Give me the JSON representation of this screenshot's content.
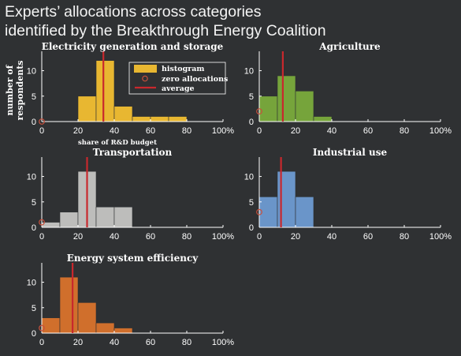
{
  "title_line1": "Experts’ allocations across categories",
  "title_line2": "identified by the Breakthrough Energy Coalition",
  "legend": {
    "histogram": "histogram",
    "zero": "zero allocations",
    "average": "average"
  },
  "colors": {
    "background": "#2f3133",
    "average_line": "#c8282d",
    "zero_marker": "#c8503c",
    "axis": "#ffffff"
  },
  "chart_data": [
    {
      "type": "bar",
      "title": "Electricity generation and storage",
      "xlabel": "share of R&D budget",
      "ylabel": "number of respondents",
      "bin_width": 10,
      "bins": [
        0,
        10,
        20,
        30,
        40,
        50,
        60,
        70
      ],
      "values": [
        0,
        0,
        5,
        12,
        3,
        1,
        1,
        1
      ],
      "zero_allocations": 0,
      "average": 34,
      "color": "#e8b731",
      "xlim": [
        0,
        100
      ],
      "ylim": [
        0,
        13.5
      ],
      "xticks": [
        0,
        20,
        40,
        60,
        80,
        100
      ],
      "xtick_labels": [
        "0",
        "20",
        "40",
        "60",
        "80",
        "100%"
      ],
      "yticks": [
        0,
        5,
        10
      ]
    },
    {
      "type": "bar",
      "title": "Agriculture",
      "bin_width": 10,
      "bins": [
        0,
        10,
        20,
        30
      ],
      "values": [
        5,
        9,
        6,
        1
      ],
      "zero_allocations": 2,
      "average": 13,
      "color": "#76a43b",
      "xlim": [
        0,
        100
      ],
      "ylim": [
        0,
        13.5
      ],
      "xticks": [
        0,
        20,
        40,
        60,
        80,
        100
      ],
      "xtick_labels": [
        "0",
        "20",
        "40",
        "60",
        "80",
        "100%"
      ],
      "yticks": [
        0,
        5,
        10
      ]
    },
    {
      "type": "bar",
      "title": "Transportation",
      "bin_width": 10,
      "bins": [
        0,
        10,
        20,
        30,
        40
      ],
      "values": [
        1,
        3,
        11,
        4,
        4
      ],
      "zero_allocations": 1,
      "average": 25,
      "color": "#bdbdbb",
      "xlim": [
        0,
        100
      ],
      "ylim": [
        0,
        13.5
      ],
      "xticks": [
        0,
        20,
        40,
        60,
        80,
        100
      ],
      "xtick_labels": [
        "0",
        "20",
        "40",
        "60",
        "80",
        "100%"
      ],
      "yticks": [
        0,
        5,
        10
      ]
    },
    {
      "type": "bar",
      "title": "Industrial use",
      "bin_width": 10,
      "bins": [
        0,
        10,
        20
      ],
      "values": [
        6,
        11,
        6
      ],
      "zero_allocations": 3,
      "average": 12,
      "color": "#6a95c9",
      "xlim": [
        0,
        100
      ],
      "ylim": [
        0,
        13.5
      ],
      "xticks": [
        0,
        20,
        40,
        60,
        80,
        100
      ],
      "xtick_labels": [
        "0",
        "20",
        "40",
        "60",
        "80",
        "100%"
      ],
      "yticks": [
        0,
        5,
        10
      ]
    },
    {
      "type": "bar",
      "title": "Energy system efficiency",
      "bin_width": 10,
      "bins": [
        0,
        10,
        20,
        30,
        40
      ],
      "values": [
        3,
        11,
        6,
        2,
        1
      ],
      "zero_allocations": 1,
      "average": 17,
      "color": "#d06f2c",
      "xlim": [
        0,
        100
      ],
      "ylim": [
        0,
        13.5
      ],
      "xticks": [
        0,
        20,
        40,
        60,
        80,
        100
      ],
      "xtick_labels": [
        "0",
        "20",
        "40",
        "60",
        "80",
        "100%"
      ],
      "yticks": [
        0,
        5,
        10
      ]
    }
  ]
}
